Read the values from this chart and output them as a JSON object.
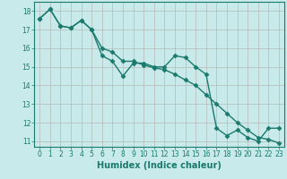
{
  "xlabel": "Humidex (Indice chaleur)",
  "x_line1": [
    0,
    1,
    2,
    3,
    4,
    5,
    6,
    7,
    8,
    9,
    10,
    11,
    12,
    13,
    14,
    15,
    16,
    17,
    18,
    19,
    20,
    21,
    22,
    23
  ],
  "y_line1": [
    17.6,
    18.1,
    17.2,
    17.1,
    17.5,
    17.0,
    15.6,
    15.3,
    14.5,
    15.2,
    15.2,
    15.0,
    15.0,
    15.6,
    15.5,
    15.0,
    14.6,
    11.7,
    11.3,
    11.6,
    11.2,
    11.0,
    11.7,
    11.7
  ],
  "x_line2": [
    0,
    1,
    2,
    3,
    4,
    5,
    6,
    7,
    8,
    9,
    10,
    11,
    12,
    13,
    14,
    15,
    16,
    17,
    18,
    19,
    20,
    21,
    22,
    23
  ],
  "y_line2": [
    17.6,
    18.1,
    17.2,
    17.1,
    17.5,
    17.0,
    16.0,
    15.8,
    15.3,
    15.3,
    15.1,
    14.95,
    14.85,
    14.6,
    14.3,
    14.0,
    13.5,
    13.0,
    12.5,
    12.0,
    11.6,
    11.2,
    11.1,
    10.9
  ],
  "line_color": "#1a7a6e",
  "marker": "D",
  "markersize": 2.5,
  "linewidth": 1.0,
  "bg_color": "#c8eaea",
  "grid_color": "#b8b8b8",
  "ylim": [
    10.7,
    18.5
  ],
  "xlim": [
    -0.5,
    23.5
  ],
  "yticks": [
    11,
    12,
    13,
    14,
    15,
    16,
    17,
    18
  ],
  "xtick_labels": [
    "0",
    "1",
    "2",
    "3",
    "4",
    "5",
    "6",
    "7",
    "8",
    "9",
    "10",
    "11",
    "12",
    "13",
    "14",
    "15",
    "16",
    "17",
    "18",
    "19",
    "20",
    "21",
    "22",
    "23"
  ],
  "tick_fontsize": 5.5,
  "xlabel_fontsize": 7
}
